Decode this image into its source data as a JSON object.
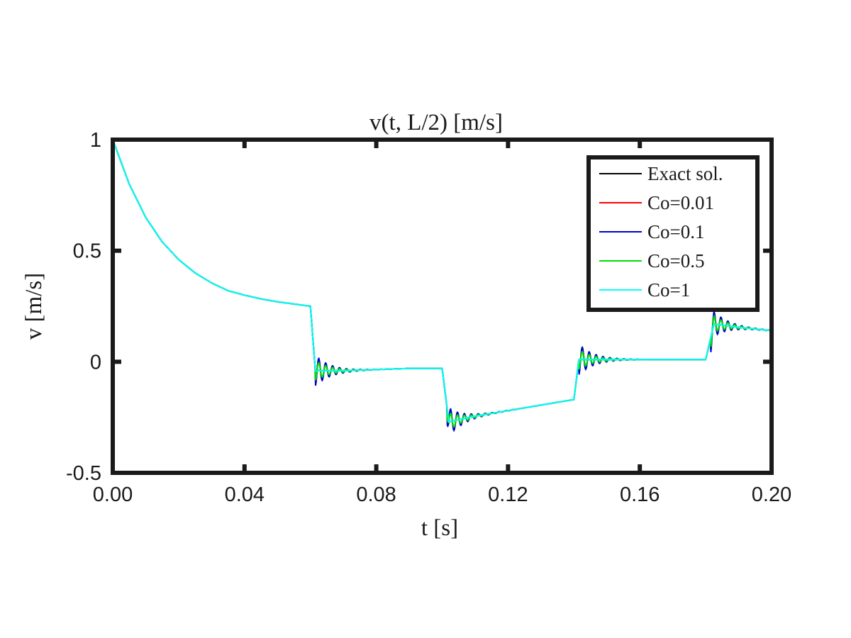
{
  "chart_data": {
    "type": "line",
    "title": "v(t, L/2) [m/s]",
    "xlabel": "t [s]",
    "ylabel": "v [m/s]",
    "xlim": [
      0,
      0.2
    ],
    "ylim": [
      -0.5,
      1
    ],
    "xticks": [
      0,
      0.04,
      0.08,
      0.12,
      0.16,
      0.2
    ],
    "xtick_labels": [
      "0.00",
      "0.04",
      "0.08",
      "0.12",
      "0.16",
      "0.20"
    ],
    "yticks": [
      -0.5,
      0,
      0.5,
      1
    ],
    "ytick_labels": [
      "-0.5",
      "0",
      "0.5",
      "1"
    ],
    "grid": false,
    "legend_position": "top-right",
    "series": [
      {
        "name": "Exact sol.",
        "color": "#000000",
        "ripple": 0
      },
      {
        "name": "Co=0.01",
        "color": "#ff0000",
        "ripple": 0.06
      },
      {
        "name": "Co=0.1",
        "color": "#0000cc",
        "ripple": 0.07
      },
      {
        "name": "Co=0.5",
        "color": "#00dd00",
        "ripple": 0.045
      },
      {
        "name": "Co=1",
        "color": "#00ffff",
        "ripple": 0
      }
    ],
    "profile": [
      [
        0.0,
        1.0
      ],
      [
        0.005,
        0.8
      ],
      [
        0.01,
        0.65
      ],
      [
        0.015,
        0.54
      ],
      [
        0.02,
        0.46
      ],
      [
        0.025,
        0.4
      ],
      [
        0.03,
        0.355
      ],
      [
        0.035,
        0.32
      ],
      [
        0.04,
        0.3
      ],
      [
        0.045,
        0.283
      ],
      [
        0.05,
        0.27
      ],
      [
        0.055,
        0.26
      ],
      [
        0.06,
        0.25
      ],
      [
        0.0615,
        -0.04
      ],
      [
        0.07,
        -0.04
      ],
      [
        0.08,
        -0.035
      ],
      [
        0.09,
        -0.03
      ],
      [
        0.1,
        -0.03
      ],
      [
        0.102,
        -0.27
      ],
      [
        0.11,
        -0.245
      ],
      [
        0.12,
        -0.22
      ],
      [
        0.13,
        -0.195
      ],
      [
        0.14,
        -0.17
      ],
      [
        0.1415,
        0.01
      ],
      [
        0.15,
        0.01
      ],
      [
        0.16,
        0.01
      ],
      [
        0.17,
        0.01
      ],
      [
        0.18,
        0.01
      ],
      [
        0.1825,
        0.17
      ],
      [
        0.19,
        0.155
      ],
      [
        0.2,
        0.14
      ]
    ],
    "jumps": [
      0.06,
      0.1,
      0.14,
      0.18
    ]
  }
}
